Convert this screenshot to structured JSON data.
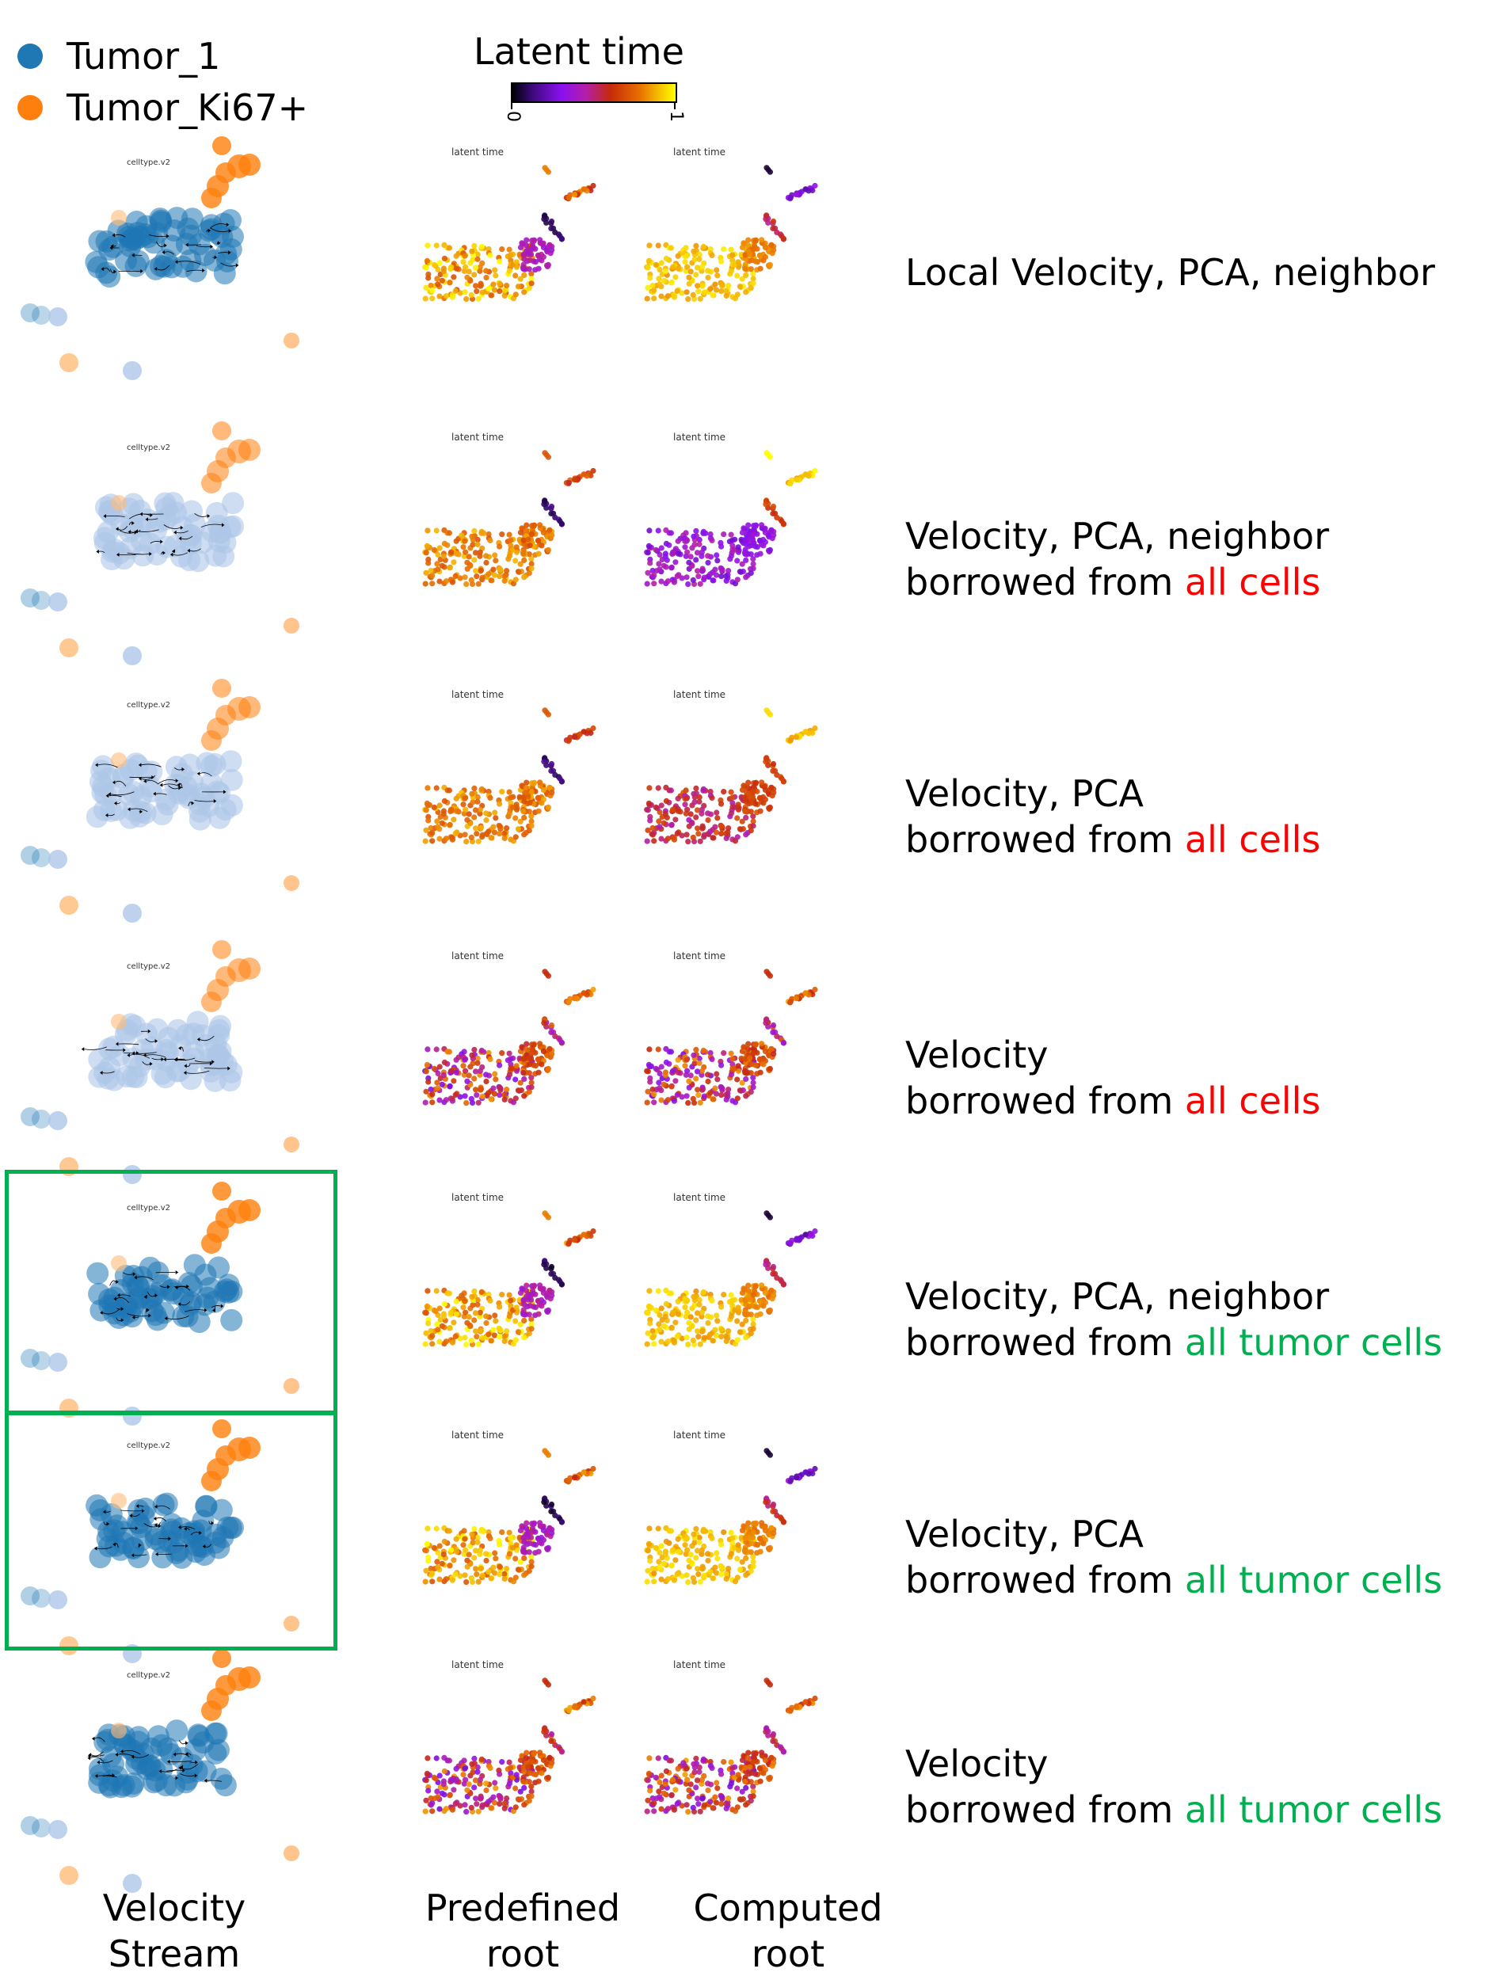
{
  "legend": {
    "items": [
      {
        "label": "Tumor_1",
        "color": "#1f77b4"
      },
      {
        "label": "Tumor_Ki67+",
        "color": "#ff7f0e"
      }
    ]
  },
  "colorbar": {
    "title": "Latent time",
    "min_label": "0",
    "max_label": "1",
    "colormap": "gnuplot"
  },
  "panel_titles": {
    "stream": "celltype.v2",
    "latent": "latent time"
  },
  "rows": [
    {
      "label_lines": [
        {
          "text": "Local Velocity, PCA, neighbor",
          "highlight": ""
        }
      ],
      "stream_style": "dark",
      "predefined_palette": "predefined-yellow-purple",
      "computed_palette": "computed-yellow",
      "highlighted": false
    },
    {
      "label_lines": [
        {
          "text": "Velocity, PCA, neighbor",
          "highlight": ""
        },
        {
          "text": "borrowed from ",
          "highlight": "all cells",
          "highlight_color": "red"
        }
      ],
      "stream_style": "light",
      "predefined_palette": "predefined-orange",
      "computed_palette": "computed-purple",
      "highlighted": false
    },
    {
      "label_lines": [
        {
          "text": "Velocity, PCA",
          "highlight": ""
        },
        {
          "text": "borrowed from ",
          "highlight": "all cells",
          "highlight_color": "red"
        }
      ],
      "stream_style": "light",
      "predefined_palette": "predefined-orange",
      "computed_palette": "computed-red-mixed",
      "highlighted": false
    },
    {
      "label_lines": [
        {
          "text": "Velocity",
          "highlight": ""
        },
        {
          "text": "borrowed from ",
          "highlight": "all cells",
          "highlight_color": "red"
        }
      ],
      "stream_style": "light",
      "predefined_palette": "mixed",
      "computed_palette": "mixed",
      "highlighted": false
    },
    {
      "label_lines": [
        {
          "text": "Velocity, PCA, neighbor",
          "highlight": ""
        },
        {
          "text": "borrowed from ",
          "highlight": "all tumor cells",
          "highlight_color": "green"
        }
      ],
      "stream_style": "dark",
      "predefined_palette": "predefined-yellow-purple",
      "computed_palette": "computed-yellow",
      "highlighted": true
    },
    {
      "label_lines": [
        {
          "text": "Velocity, PCA",
          "highlight": ""
        },
        {
          "text": "borrowed from ",
          "highlight": "all tumor cells",
          "highlight_color": "green"
        }
      ],
      "stream_style": "dark",
      "predefined_palette": "predefined-yellow-purple",
      "computed_palette": "computed-yellow",
      "highlighted": true
    },
    {
      "label_lines": [
        {
          "text": "Velocity",
          "highlight": ""
        },
        {
          "text": "borrowed from ",
          "highlight": "all tumor cells",
          "highlight_color": "green"
        }
      ],
      "stream_style": "dark",
      "predefined_palette": "mixed",
      "computed_palette": "mixed",
      "highlighted": false
    }
  ],
  "column_labels": [
    {
      "line1": "Velocity",
      "line2": "Stream"
    },
    {
      "line1": "Predefined",
      "line2": "root"
    },
    {
      "line1": "Computed",
      "line2": "root"
    }
  ],
  "colors": {
    "tumor_1": "#1f77b4",
    "tumor_ki67": "#ff7f0e",
    "highlight_red": "#ff0000",
    "highlight_green": "#00b050",
    "box_green": "#00b050"
  }
}
